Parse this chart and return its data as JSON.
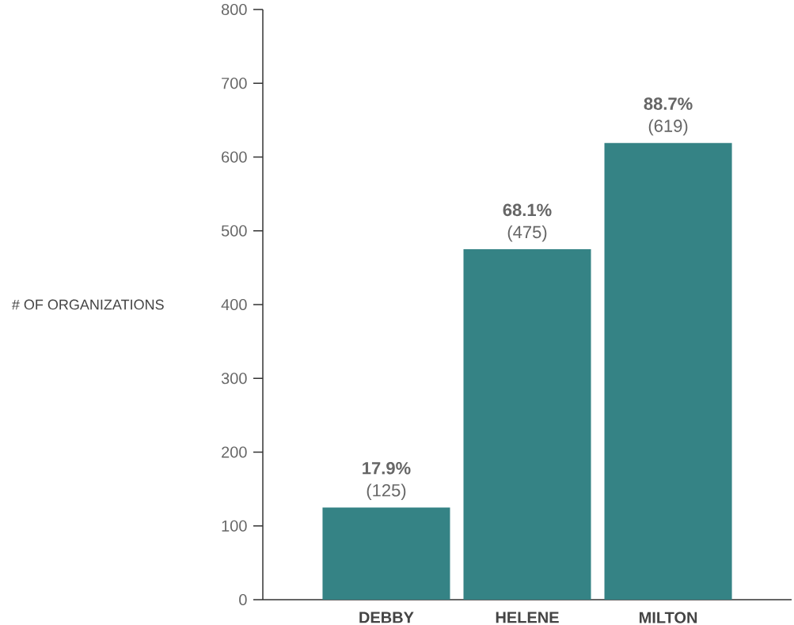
{
  "chart_data": {
    "type": "bar",
    "ylabel": "# OF ORGANIZATIONS",
    "categories": [
      "DEBBY",
      "HELENE",
      "MILTON"
    ],
    "values": [
      125,
      475,
      619
    ],
    "value_labels": [
      "**17.9%** (125)",
      "**68.1%** (475)",
      "**88.7%** (619)"
    ],
    "color": "#358385",
    "ylim": [
      0,
      800
    ],
    "yticks": [
      0,
      100,
      200,
      300,
      400,
      500,
      600,
      700,
      800
    ],
    "grid": false
  }
}
